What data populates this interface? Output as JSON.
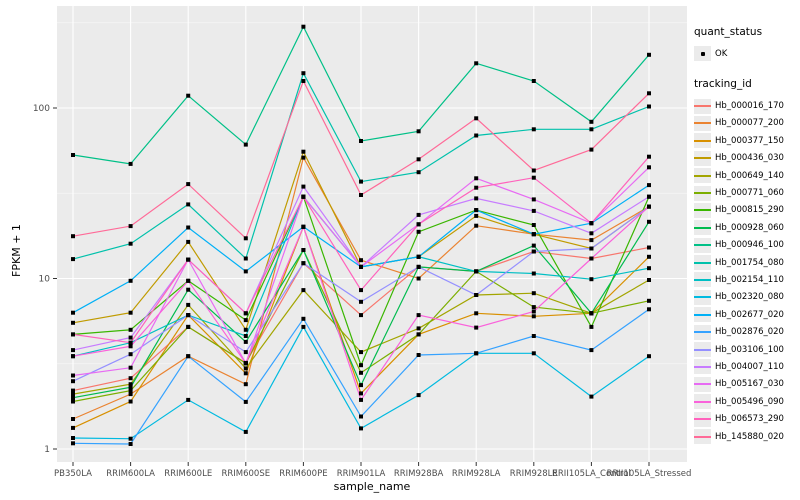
{
  "chart_data": {
    "type": "line",
    "title": "",
    "xlabel": "sample_name",
    "ylabel": "FPKM + 1",
    "y_scale": "log10",
    "y_ticks": [
      1,
      10,
      100
    ],
    "y_tick_labels": [
      "1",
      "10",
      "100"
    ],
    "y_minor_ticks": [
      3.162,
      31.62,
      316.2
    ],
    "ylim": [
      0.84,
      396
    ],
    "grid": "on",
    "legend_position": "right",
    "categories": [
      "PB350LA",
      "RRIM600LA",
      "RRIM600LE",
      "RRIM600SE",
      "RRIM600PE",
      "RRIM901LA",
      "RRIM928BA",
      "RRIM928LA",
      "RRIM928LE",
      "RRII105LA_Control",
      "RRII105LA_Stressed"
    ],
    "point_marker": "black-square",
    "series": [
      {
        "name": "Hb_000016_170",
        "color": "#F8766D",
        "values": [
          2.2,
          2.6,
          5.2,
          3.2,
          12.3,
          6.1,
          11.7,
          11.0,
          14.4,
          13.1,
          15.2
        ]
      },
      {
        "name": "Hb_000077_200",
        "color": "#EA8331",
        "values": [
          1.5,
          2.1,
          3.5,
          2.4,
          51.2,
          12.8,
          10.0,
          20.4,
          18.2,
          16.8,
          26.4
        ]
      },
      {
        "name": "Hb_000377_150",
        "color": "#D89000",
        "values": [
          1.33,
          1.9,
          6.1,
          2.78,
          20.1,
          2.12,
          4.7,
          6.25,
          6.0,
          6.25,
          13.4
        ]
      },
      {
        "name": "Hb_000436_030",
        "color": "#C09B00",
        "values": [
          5.5,
          6.3,
          16.4,
          5.0,
          55.4,
          11.7,
          13.4,
          23.3,
          18.2,
          15.0,
          26.4
        ]
      },
      {
        "name": "Hb_000649_140",
        "color": "#A3A500",
        "values": [
          2.1,
          2.4,
          7.0,
          2.97,
          8.55,
          3.7,
          5.1,
          8.0,
          8.2,
          6.25,
          9.8
        ]
      },
      {
        "name": "Hb_000771_060",
        "color": "#7CAE00",
        "values": [
          1.9,
          2.2,
          5.2,
          3.18,
          14.7,
          2.8,
          4.7,
          11.0,
          6.8,
          6.25,
          7.4
        ]
      },
      {
        "name": "Hb_000815_290",
        "color": "#39B600",
        "values": [
          4.7,
          5.0,
          9.7,
          5.7,
          30.2,
          3.1,
          18.8,
          25.2,
          20.6,
          5.2,
          30.2
        ]
      },
      {
        "name": "Hb_000928_060",
        "color": "#00BB4E",
        "values": [
          2.0,
          2.3,
          8.6,
          4.25,
          14.7,
          2.37,
          11.7,
          11.0,
          15.6,
          6.25,
          21.5
        ]
      },
      {
        "name": "Hb_000946_100",
        "color": "#00C087",
        "values": [
          53,
          47,
          118,
          61,
          300,
          64,
          73,
          183,
          144,
          83,
          205
        ]
      },
      {
        "name": "Hb_001754_080",
        "color": "#00C1AB",
        "values": [
          13,
          16,
          27.2,
          13.1,
          160,
          37,
          42,
          69,
          75,
          75,
          102
        ]
      },
      {
        "name": "Hb_002154_110",
        "color": "#00BFC4",
        "values": [
          3.5,
          4.2,
          6.1,
          4.6,
          30.2,
          11.7,
          13.4,
          11.0,
          10.7,
          9.9,
          11.5
        ]
      },
      {
        "name": "Hb_002320_080",
        "color": "#00BAE0",
        "values": [
          1.16,
          1.15,
          1.94,
          1.26,
          5.2,
          1.32,
          2.07,
          3.64,
          3.64,
          2.03,
          3.5
        ]
      },
      {
        "name": "Hb_002677_020",
        "color": "#00B0F6",
        "values": [
          6.3,
          9.7,
          19.9,
          11.0,
          20.1,
          11.7,
          13.4,
          25.2,
          18.2,
          21.1,
          35.3
        ]
      },
      {
        "name": "Hb_002876_020",
        "color": "#35A2FF",
        "values": [
          1.08,
          1.07,
          3.5,
          1.89,
          5.8,
          1.55,
          3.56,
          3.64,
          4.6,
          3.8,
          6.6
        ]
      },
      {
        "name": "Hb_003106_100",
        "color": "#9590FF",
        "values": [
          2.5,
          3.6,
          6.1,
          3.7,
          12.3,
          7.3,
          11.7,
          8.0,
          14.4,
          15.0,
          26.4
        ]
      },
      {
        "name": "Hb_004007_110",
        "color": "#C77CFF",
        "values": [
          3.8,
          4.5,
          12.9,
          6.25,
          34.6,
          11.7,
          23.6,
          29.5,
          24.9,
          18.4,
          30.2
        ]
      },
      {
        "name": "Hb_005167_030",
        "color": "#E76BF3",
        "values": [
          2.7,
          3.0,
          12.9,
          3.18,
          30.2,
          11.7,
          20.8,
          38.7,
          29.1,
          21.1,
          44.9
        ]
      },
      {
        "name": "Hb_005496_090",
        "color": "#FA62DB",
        "values": [
          3.5,
          4.0,
          9.7,
          3.18,
          20.1,
          1.94,
          6.1,
          5.15,
          6.4,
          13.1,
          26.4
        ]
      },
      {
        "name": "Hb_006573_290",
        "color": "#FF62BC",
        "values": [
          4.7,
          4.2,
          12.9,
          6.25,
          30.2,
          8.55,
          20.8,
          34.1,
          39,
          21.1,
          51.8
        ]
      },
      {
        "name": "Hb_145880_020",
        "color": "#FF6A98",
        "values": [
          17.7,
          20.3,
          35.8,
          17.2,
          144,
          30.9,
          50,
          87,
          43,
          57,
          122
        ]
      }
    ]
  },
  "legend": {
    "quant_status_title": "quant_status",
    "quant_status_items": [
      {
        "label": "OK",
        "marker": "point"
      }
    ],
    "tracking_id_title": "tracking_id"
  },
  "colors": {
    "panel_bg": "#EBEBEB",
    "grid_major": "#FFFFFF",
    "grid_minor": "#F5F5F5",
    "axis_text": "#4D4D4D",
    "axis_title": "#000000",
    "point": "#000000",
    "background": "#FFFFFF",
    "legend_key_bg": "#EBEBEB"
  }
}
